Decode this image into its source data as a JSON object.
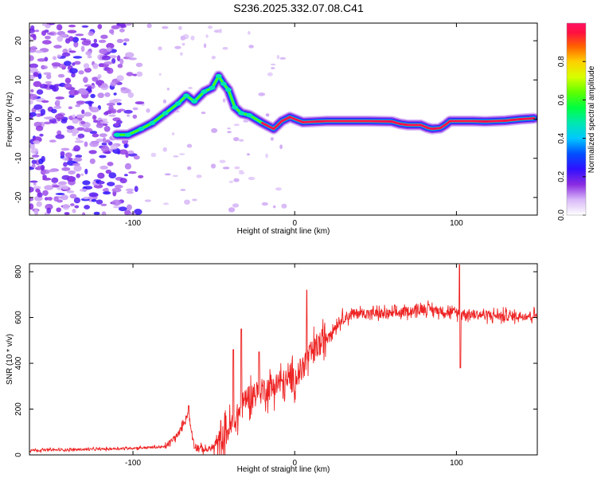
{
  "title": "S236.2025.332.07.08.C41",
  "colors": {
    "axis": "#000000",
    "snr_line": "#ee2222",
    "track_core": "#ee2222",
    "background": "#ffffff"
  },
  "chart_data": [
    {
      "type": "heatmap",
      "title": "S236.2025.332.07.08.C41",
      "xlabel": "Height of straight line (km)",
      "ylabel": "Frequency (Hz)",
      "xlim": [
        -164,
        150
      ],
      "ylim": [
        -24.5,
        24.5
      ],
      "xticks": [
        -100,
        0,
        100
      ],
      "yticks": [
        20,
        10,
        0,
        -10,
        -20
      ],
      "colorbar": {
        "label": "Normalized spectral amplitude",
        "range": [
          0,
          1
        ],
        "ticks": [
          "0.0",
          "0.2",
          "0.4",
          "0.6",
          "0.8"
        ]
      },
      "noise_region_x": [
        -164,
        -95
      ],
      "track": {
        "x": [
          -110,
          -103,
          -95,
          -88,
          -80,
          -72,
          -67,
          -62,
          -56,
          -51,
          -47,
          -44,
          -41,
          -37,
          -33,
          -28,
          -20,
          -13,
          -8,
          -3,
          5,
          20,
          45,
          60,
          65,
          70,
          78,
          82,
          85,
          90,
          93,
          96,
          102,
          110,
          118,
          130,
          140,
          148
        ],
        "y": [
          -4,
          -4,
          -2.5,
          -1,
          1.5,
          4,
          6,
          4.5,
          7,
          8,
          11,
          9,
          7.5,
          3,
          1.5,
          1,
          -1,
          -2.5,
          -0.5,
          0.5,
          -0.8,
          -0.5,
          -0.5,
          -0.6,
          -1.2,
          -1.5,
          -1.5,
          -2.2,
          -2.5,
          -2.3,
          -1.5,
          -0.5,
          -0.5,
          -0.5,
          -0.6,
          -0.4,
          0,
          0.2
        ],
        "peak_amplitude": 1.0
      }
    },
    {
      "type": "line",
      "xlabel": "Height of straight line (km)",
      "ylabel": "SNR (10 * v/v)",
      "xlim": [
        -164,
        150
      ],
      "ylim": [
        0,
        835
      ],
      "xticks": [
        -100,
        0,
        100
      ],
      "yticks": [
        0,
        200,
        400,
        600,
        800
      ],
      "series": [
        {
          "name": "SNR",
          "x": [
            -164,
            -120,
            -100,
            -80,
            -72,
            -66,
            -62,
            -55,
            -48,
            -42,
            -36,
            -30,
            -20,
            -10,
            0,
            10,
            20,
            30,
            40,
            60,
            80,
            100,
            110,
            130,
            150
          ],
          "y": [
            20,
            25,
            30,
            35,
            90,
            180,
            40,
            20,
            40,
            100,
            160,
            250,
            280,
            310,
            330,
            440,
            520,
            600,
            620,
            615,
            640,
            620,
            615,
            605,
            610
          ],
          "spikes": [
            {
              "x": -65.5,
              "y": 215
            },
            {
              "x": -38,
              "y": 460
            },
            {
              "x": -33,
              "y": 550
            },
            {
              "x": -22,
              "y": 450
            },
            {
              "x": 7.5,
              "y": 720
            },
            {
              "x": 102,
              "y": 830
            },
            {
              "x": 102.5,
              "y": 380
            }
          ]
        }
      ]
    }
  ]
}
